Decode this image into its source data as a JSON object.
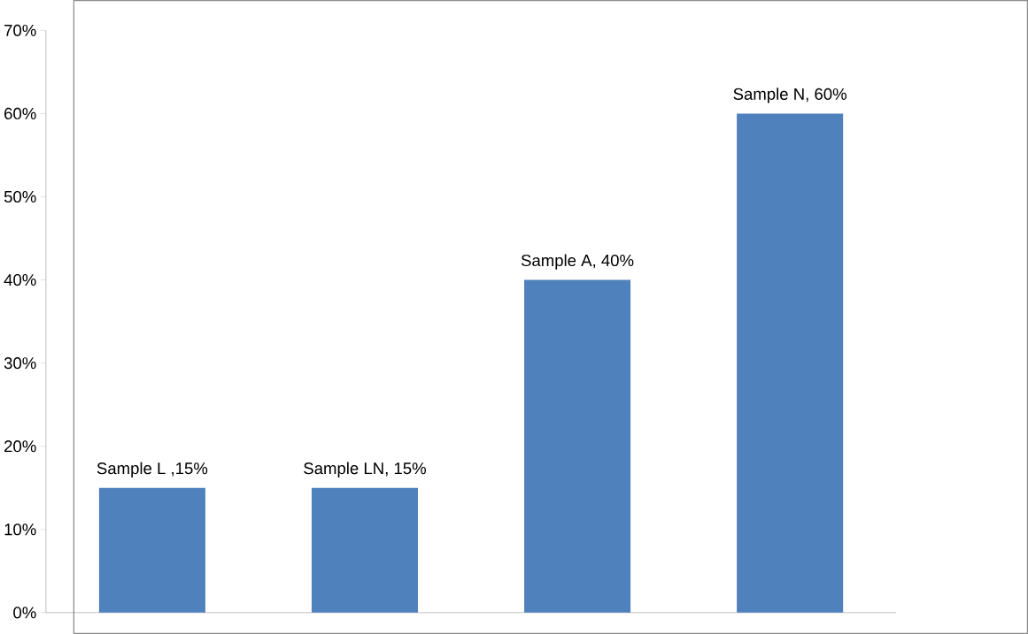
{
  "chart_data": {
    "type": "bar",
    "categories": [
      null,
      null,
      null,
      null
    ],
    "values": [
      15,
      15,
      40,
      60
    ],
    "color": "#4f81bd",
    "value_labels": [
      "Sample L ,15%",
      "Sample LN, 15%",
      "Sample A, 40%",
      "Sample N, 60%"
    ],
    "ylim": [
      0,
      70
    ],
    "yticks": [
      {
        "value": 0,
        "label": "0%"
      },
      {
        "value": 10,
        "label": "10%"
      },
      {
        "value": 20,
        "label": "20%"
      },
      {
        "value": 30,
        "label": "30%"
      },
      {
        "value": 40,
        "label": "40%"
      },
      {
        "value": 50,
        "label": "50%"
      },
      {
        "value": 60,
        "label": "60%"
      },
      {
        "value": 70,
        "label": "70%"
      }
    ],
    "tick_labels": "y"
  }
}
